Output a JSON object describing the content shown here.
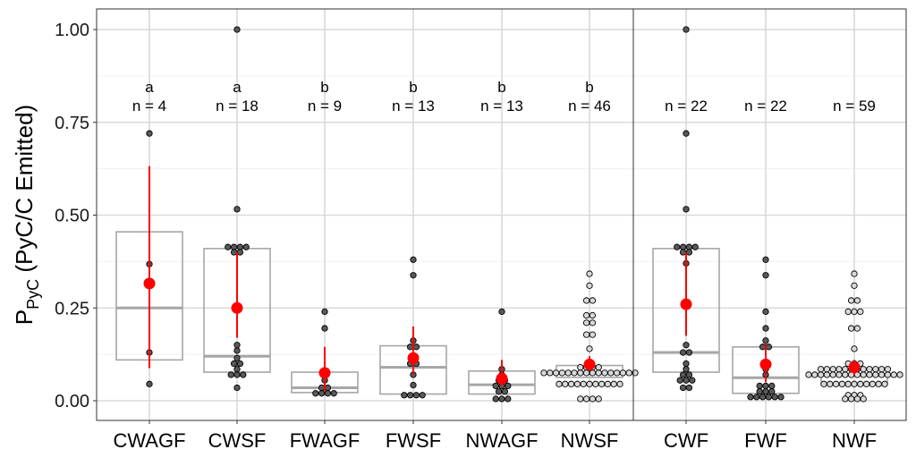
{
  "chart_data": {
    "type": "box",
    "title": "",
    "xlabel": "",
    "ylabel_main": "P",
    "ylabel_sub": "PyC",
    "ylabel_rest": " (PyC/C Emitted)",
    "ylim": [
      -0.05,
      1.05
    ],
    "yticks": [
      0.0,
      0.25,
      0.5,
      0.75,
      1.0
    ],
    "ytick_labels": [
      "0.00",
      "0.25",
      "0.50",
      "0.75",
      "1.00"
    ],
    "grid": true,
    "panels": [
      {
        "name": "left",
        "categories": [
          "CWAGF",
          "CWSF",
          "FWAGF",
          "FWSF",
          "NWAGF",
          "NWSF"
        ],
        "groups": [
          {
            "label": "CWAGF",
            "letter": "a",
            "n_label": "n = 4",
            "box": [
              0.11,
              0.25,
              0.455
            ],
            "mean": 0.316,
            "ci": [
              0.088,
              0.632
            ],
            "fill": "dark",
            "points": [
              0.72,
              0.368,
              0.13,
              0.045
            ]
          },
          {
            "label": "CWSF",
            "letter": "a",
            "n_label": "n = 18",
            "box": [
              0.077,
              0.12,
              0.41
            ],
            "mean": 0.25,
            "ci": [
              0.17,
              0.4
            ],
            "fill": "dark",
            "points": [
              1.0,
              0.516,
              0.414,
              0.414,
              0.414,
              0.414,
              0.4,
              0.4,
              0.15,
              0.135,
              0.115,
              0.1,
              0.1,
              0.085,
              0.07,
              0.07,
              0.07,
              0.035
            ]
          },
          {
            "label": "FWAGF",
            "letter": "b",
            "n_label": "n = 9",
            "box": [
              0.022,
              0.035,
              0.077
            ],
            "mean": 0.075,
            "ci": [
              0.025,
              0.145
            ],
            "fill": "dark",
            "points": [
              0.24,
              0.195,
              0.055,
              0.035,
              0.035,
              0.02,
              0.02,
              0.02,
              0.02
            ]
          },
          {
            "label": "FWSF",
            "letter": "b",
            "n_label": "n = 13",
            "box": [
              0.018,
              0.09,
              0.148
            ],
            "mean": 0.115,
            "ci": [
              0.07,
              0.2
            ],
            "fill": "dark",
            "points": [
              0.38,
              0.338,
              0.162,
              0.145,
              0.145,
              0.1,
              0.1,
              0.07,
              0.042,
              0.015,
              0.015,
              0.015,
              0.015
            ]
          },
          {
            "label": "NWAGF",
            "letter": "b",
            "n_label": "n = 13",
            "box": [
              0.018,
              0.043,
              0.08
            ],
            "mean": 0.06,
            "ci": [
              0.04,
              0.11
            ],
            "fill": "dark",
            "points": [
              0.24,
              0.085,
              0.07,
              0.055,
              0.055,
              0.04,
              0.04,
              0.04,
              0.025,
              0.025,
              0.005,
              0.005,
              0.005
            ]
          },
          {
            "label": "NWSF",
            "letter": "b",
            "n_label": "n = 46",
            "box": [
              0.063,
              0.075,
              0.095
            ],
            "mean": 0.098,
            "ci": [
              0.08,
              0.12
            ],
            "fill": "light",
            "points": [
              0.342,
              0.31,
              0.27,
              0.27,
              0.23,
              0.23,
              0.21,
              0.21,
              0.178,
              0.178,
              0.14,
              0.09,
              0.09,
              0.09,
              0.09,
              0.075,
              0.075,
              0.075,
              0.075,
              0.075,
              0.075,
              0.075,
              0.075,
              0.075,
              0.075,
              0.075,
              0.075,
              0.075,
              0.075,
              0.075,
              0.075,
              0.045,
              0.045,
              0.045,
              0.045,
              0.045,
              0.045,
              0.045,
              0.045,
              0.045,
              0.045,
              0.045,
              0.005,
              0.005,
              0.005,
              0.005
            ]
          }
        ]
      },
      {
        "name": "right",
        "categories": [
          "CWF",
          "FWF",
          "NWF"
        ],
        "groups": [
          {
            "label": "CWF",
            "letter": "",
            "n_label": "n = 22",
            "box": [
              0.077,
              0.13,
              0.41
            ],
            "mean": 0.26,
            "ci": [
              0.175,
              0.4
            ],
            "fill": "dark",
            "points": [
              1.0,
              0.72,
              0.516,
              0.414,
              0.414,
              0.414,
              0.414,
              0.4,
              0.4,
              0.37,
              0.15,
              0.13,
              0.13,
              0.1,
              0.085,
              0.07,
              0.07,
              0.055,
              0.055,
              0.055,
              0.035,
              0.035
            ]
          },
          {
            "label": "FWF",
            "letter": "",
            "n_label": "n = 22",
            "box": [
              0.02,
              0.062,
              0.145
            ],
            "mean": 0.098,
            "ci": [
              0.05,
              0.155
            ],
            "fill": "dark",
            "points": [
              0.38,
              0.338,
              0.24,
              0.195,
              0.162,
              0.145,
              0.145,
              0.1,
              0.085,
              0.07,
              0.04,
              0.04,
              0.04,
              0.025,
              0.025,
              0.025,
              0.01,
              0.01,
              0.01,
              0.01,
              0.01,
              0.01
            ]
          },
          {
            "label": "NWF",
            "letter": "",
            "n_label": "n = 59",
            "box": [
              0.045,
              0.07,
              0.085
            ],
            "mean": 0.09,
            "ci": [
              0.07,
              0.11
            ],
            "fill": "light",
            "points": [
              0.342,
              0.31,
              0.27,
              0.27,
              0.24,
              0.24,
              0.24,
              0.195,
              0.195,
              0.14,
              0.1,
              0.1,
              0.1,
              0.085,
              0.085,
              0.085,
              0.085,
              0.085,
              0.085,
              0.085,
              0.085,
              0.085,
              0.085,
              0.085,
              0.085,
              0.07,
              0.07,
              0.07,
              0.07,
              0.07,
              0.07,
              0.07,
              0.07,
              0.07,
              0.07,
              0.07,
              0.07,
              0.07,
              0.07,
              0.07,
              0.07,
              0.045,
              0.045,
              0.045,
              0.045,
              0.045,
              0.045,
              0.045,
              0.045,
              0.045,
              0.045,
              0.045,
              0.015,
              0.015,
              0.015,
              0.005,
              0.005,
              0.005,
              0.005
            ]
          }
        ]
      }
    ],
    "colors": {
      "box_stroke": "#a6a6a6",
      "median": "#a6a6a6",
      "mean": "#ff0000",
      "point_dark": "#595959",
      "point_light": "#d9d9d9",
      "point_stroke": "#000000",
      "grid_major": "#d9d9d9",
      "grid_minor": "#f0f0f0",
      "panel_border": "#333333"
    }
  }
}
